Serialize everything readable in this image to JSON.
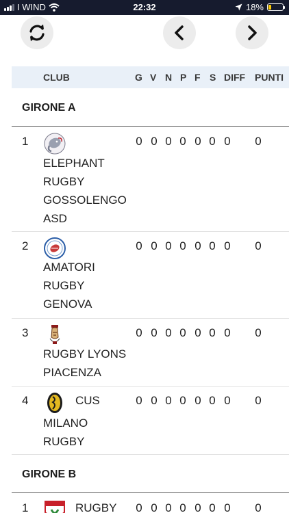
{
  "status": {
    "carrier": "I WIND",
    "time": "22:32",
    "battery": "18%",
    "battery_level": 0.18
  },
  "toolbar": {
    "refresh_icon": "refresh-icon",
    "prev_icon": "chevron-left-icon",
    "next_icon": "chevron-right-icon"
  },
  "header": {
    "club": "CLUB",
    "g": "G",
    "v": "V",
    "n": "N",
    "p": "P",
    "f": "F",
    "s": "S",
    "diff": "DIFF",
    "punti": "PUNTI"
  },
  "groups": [
    {
      "title": "GIRONE A",
      "teams": [
        {
          "rank": "1",
          "lines": [
            "ELEPHANT",
            "RUGBY",
            "GOSSOLENGO",
            "ASD"
          ],
          "inline": "",
          "g": "0",
          "v": "0",
          "n": "0",
          "p": "0",
          "f": "0",
          "s": "0",
          "diff": "0",
          "punti": "0"
        },
        {
          "rank": "2",
          "lines": [
            "AMATORI",
            "RUGBY",
            "GENOVA"
          ],
          "inline": "",
          "g": "0",
          "v": "0",
          "n": "0",
          "p": "0",
          "f": "0",
          "s": "0",
          "diff": "0",
          "punti": "0"
        },
        {
          "rank": "3",
          "lines": [
            "RUGBY LYONS",
            "PIACENZA"
          ],
          "inline": "",
          "g": "0",
          "v": "0",
          "n": "0",
          "p": "0",
          "f": "0",
          "s": "0",
          "diff": "0",
          "punti": "0"
        },
        {
          "rank": "4",
          "lines": [
            "MILANO",
            "RUGBY"
          ],
          "inline": "CUS",
          "g": "0",
          "v": "0",
          "n": "0",
          "p": "0",
          "f": "0",
          "s": "0",
          "diff": "0",
          "punti": "0"
        }
      ]
    },
    {
      "title": "GIRONE B",
      "teams": [
        {
          "rank": "1",
          "lines": [],
          "inline": "RUGBY",
          "g": "0",
          "v": "0",
          "n": "0",
          "p": "0",
          "f": "0",
          "s": "0",
          "diff": "0",
          "punti": "0"
        }
      ]
    }
  ]
}
